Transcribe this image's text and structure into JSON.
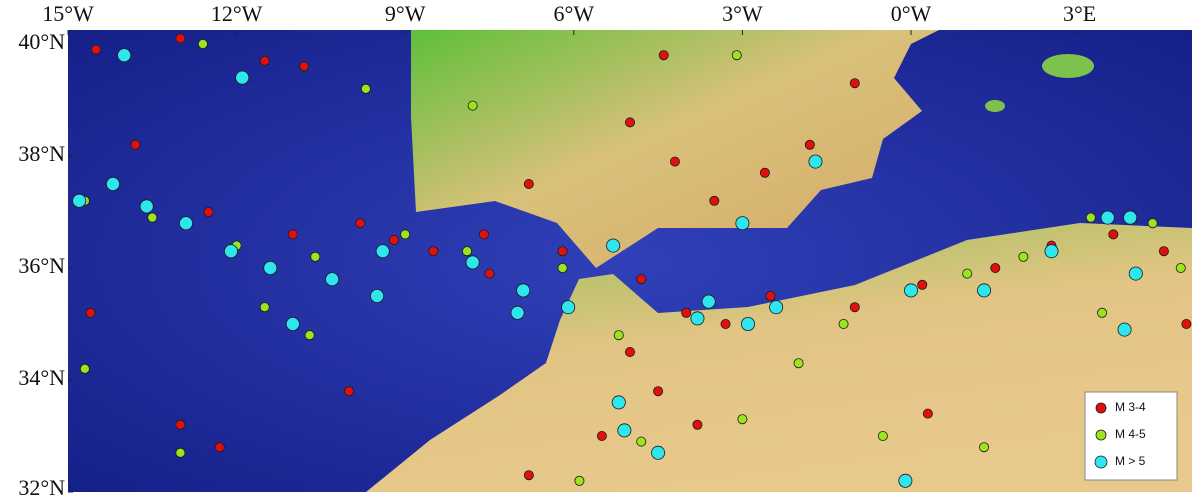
{
  "chart_data": {
    "type": "scatter",
    "xlim": [
      -15,
      5
    ],
    "ylim": [
      32,
      40.25
    ],
    "xticks": [
      {
        "value": -15,
        "label": "15°W"
      },
      {
        "value": -12,
        "label": "12°W"
      },
      {
        "value": -9,
        "label": "9°W"
      },
      {
        "value": -6,
        "label": "6°W"
      },
      {
        "value": -3,
        "label": "3°W"
      },
      {
        "value": 0,
        "label": "0°W"
      },
      {
        "value": 3,
        "label": "3°E"
      }
    ],
    "yticks": [
      {
        "value": 32,
        "label": "32°N"
      },
      {
        "value": 34,
        "label": "34°N"
      },
      {
        "value": 36,
        "label": "36°N"
      },
      {
        "value": 38,
        "label": "38°N"
      },
      {
        "value": 40,
        "label": "40°N"
      }
    ],
    "legend": "lower right",
    "series": [
      {
        "name": "M 3-4",
        "color": "#e0100f",
        "x": [
          -14.5,
          -13,
          -11.5,
          -10.8,
          -13.8,
          -12.5,
          -11,
          -9.8,
          -9.2,
          -8.5,
          -7.6,
          -6.8,
          -5,
          -4.2,
          -3.5,
          -2.6,
          -1.8,
          -1,
          -4.4,
          -6.2,
          -4.8,
          -4,
          -3.3,
          -5,
          -4.5,
          -5.5,
          -6.8,
          -2.5,
          -1,
          0.2,
          1.5,
          2.5,
          3.6,
          4.5,
          -13,
          -12.3,
          -14.6,
          -10,
          -7.5,
          -3.8,
          0.3,
          4.9
        ],
        "values": [
          39.9,
          40.1,
          39.7,
          39.6,
          38.2,
          37,
          36.6,
          36.8,
          36.5,
          36.3,
          36.6,
          37.5,
          38.6,
          37.9,
          37.2,
          37.7,
          38.2,
          39.3,
          39.8,
          36.3,
          35.8,
          35.2,
          35,
          34.5,
          33.8,
          33,
          32.3,
          35.5,
          35.3,
          35.7,
          36,
          36.4,
          36.6,
          36.3,
          33.2,
          32.8,
          35.2,
          33.8,
          35.9,
          33.2,
          33.4,
          35
        ]
      },
      {
        "name": "M 4-5",
        "color": "#9be41e",
        "x": [
          -14.7,
          -13.5,
          -12,
          -10.6,
          -9,
          -7.9,
          -11.5,
          -14.7,
          -13,
          -10.7,
          -6.2,
          -5.2,
          -4.8,
          -3,
          -5.9,
          -1.2,
          1,
          2,
          3.2,
          4.3,
          4.8,
          -0.5,
          1.3,
          3.4,
          -9.7,
          -12.6,
          -2,
          -7.8,
          -3.1
        ],
        "values": [
          37.2,
          36.9,
          36.4,
          36.2,
          36.6,
          36.3,
          35.3,
          34.2,
          32.7,
          34.8,
          36,
          34.8,
          32.9,
          33.3,
          32.2,
          35,
          35.9,
          36.2,
          36.9,
          36.8,
          36,
          33,
          32.8,
          35.2,
          39.2,
          40,
          34.3,
          38.9,
          39.8
        ]
      },
      {
        "name": "M > 5",
        "color": "#2fe6ee",
        "x": [
          -14,
          -11.9,
          -14.8,
          -13.6,
          -12.9,
          -12.1,
          -11.4,
          -10.3,
          -9.4,
          -9.5,
          -11,
          -7.8,
          -6.9,
          -6.1,
          -5.3,
          -3.6,
          -3.8,
          -2.9,
          -2.4,
          -3,
          -1.7,
          -5.2,
          -5.1,
          -4.5,
          -0.1,
          0,
          1.3,
          2.5,
          3.5,
          3.9,
          4,
          3.8,
          -14.2,
          -7
        ],
        "values": [
          39.8,
          39.4,
          37.2,
          37.1,
          36.8,
          36.3,
          36,
          35.8,
          36.3,
          35.5,
          35,
          36.1,
          35.6,
          35.3,
          36.4,
          35.4,
          35.1,
          35,
          35.3,
          36.8,
          37.9,
          33.6,
          33.1,
          32.7,
          32.2,
          35.6,
          35.6,
          36.3,
          36.9,
          36.9,
          35.9,
          34.9,
          37.5,
          35.2
        ]
      }
    ]
  }
}
